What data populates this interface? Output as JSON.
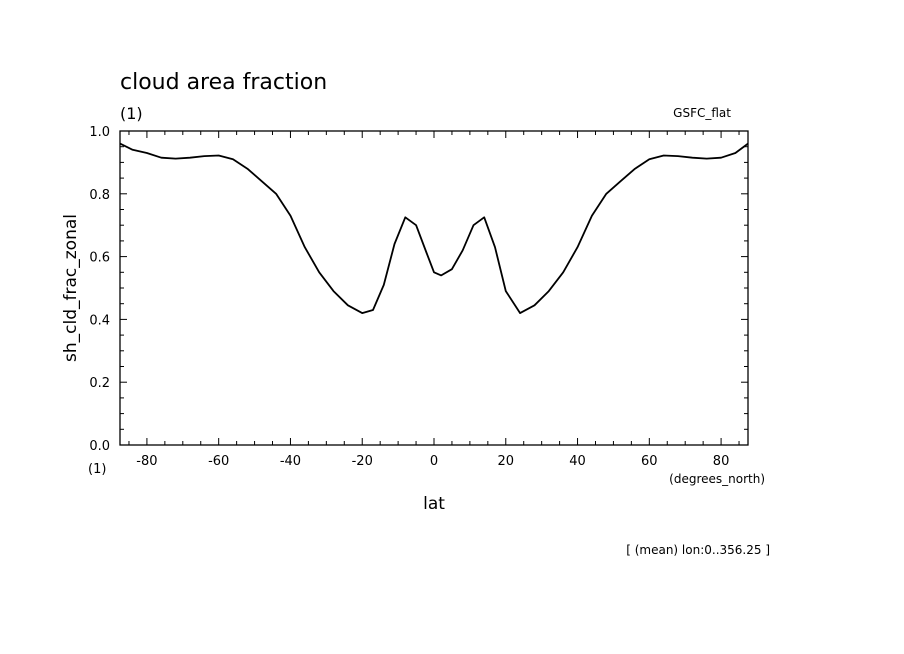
{
  "chart_data": {
    "type": "line",
    "title": "cloud area fraction",
    "subtitle_units": "(1)",
    "dataset_label": "GSFC_flat",
    "xlabel": "lat",
    "xunits": "(degrees_north)",
    "ylabel": "sh_cld_frac_zonal",
    "yunits": "(1)",
    "footer_note": "[ (mean) lon:0..356.25 ]",
    "xlim": [
      -87.5,
      87.5
    ],
    "ylim": [
      0.0,
      1.0
    ],
    "xticks": [
      -80,
      -60,
      -40,
      -20,
      0,
      20,
      40,
      60,
      80
    ],
    "xtick_labels": [
      "-80",
      "-60",
      "-40",
      "-20",
      "0",
      "20",
      "40",
      "60",
      "80"
    ],
    "yticks": [
      0.0,
      0.2,
      0.4,
      0.6,
      0.8,
      1.0
    ],
    "ytick_labels": [
      "0.0",
      "0.2",
      "0.4",
      "0.6",
      "0.8",
      "1.0"
    ],
    "grid": false,
    "series": [
      {
        "x": [
          -87.5,
          -84,
          -80,
          -76,
          -72,
          -68,
          -64,
          -60,
          -56,
          -52,
          -48,
          -44,
          -40,
          -36,
          -32,
          -28,
          -24,
          -20,
          -17,
          -14,
          -11,
          -8,
          -5,
          -2,
          0,
          2,
          5,
          8,
          11,
          14,
          17,
          20,
          24,
          28,
          32,
          36,
          40,
          44,
          48,
          52,
          56,
          60,
          64,
          68,
          72,
          76,
          80,
          84,
          87.5
        ],
        "y": [
          0.96,
          0.94,
          0.93,
          0.915,
          0.912,
          0.915,
          0.92,
          0.922,
          0.91,
          0.88,
          0.84,
          0.8,
          0.73,
          0.63,
          0.55,
          0.49,
          0.445,
          0.42,
          0.43,
          0.51,
          0.64,
          0.725,
          0.7,
          0.61,
          0.55,
          0.54,
          0.56,
          0.62,
          0.7,
          0.725,
          0.63,
          0.49,
          0.42,
          0.445,
          0.49,
          0.55,
          0.63,
          0.73,
          0.8,
          0.84,
          0.88,
          0.91,
          0.922,
          0.92,
          0.915,
          0.912,
          0.915,
          0.93,
          0.96
        ]
      }
    ],
    "line_color": "#000000"
  }
}
